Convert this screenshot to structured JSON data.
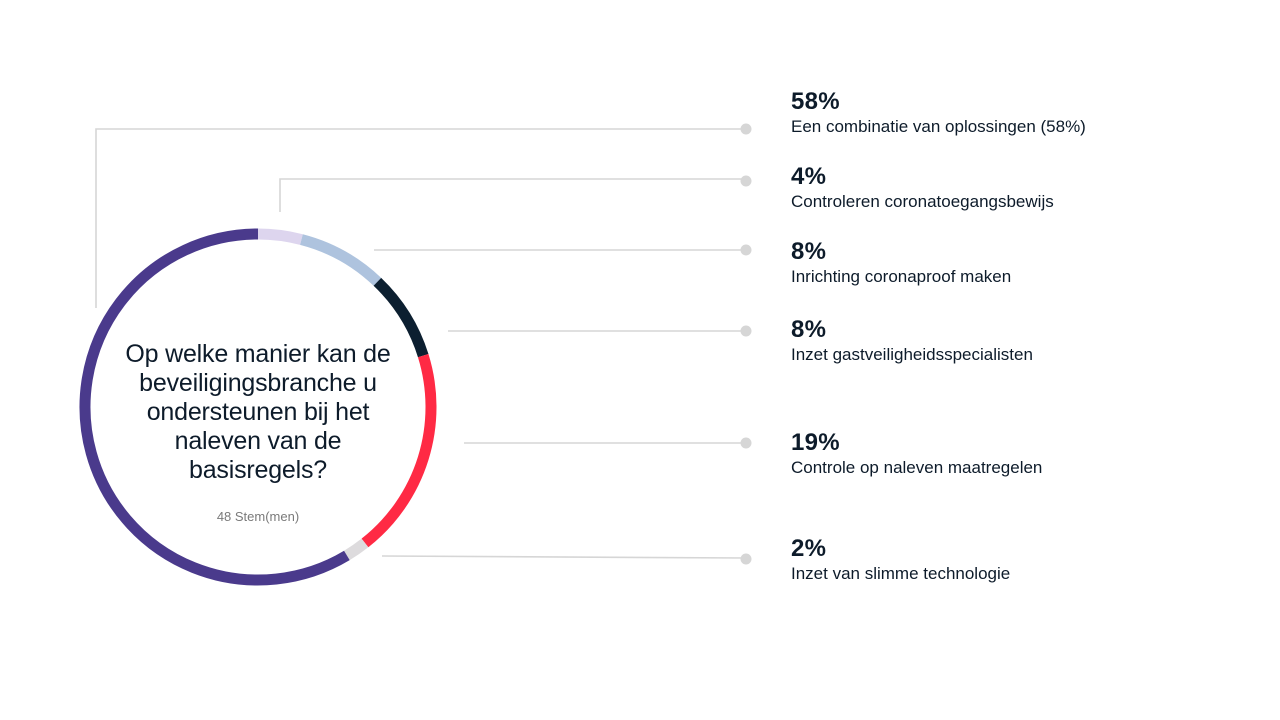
{
  "chart_data": {
    "type": "pie",
    "style": "donut",
    "question": "Op welke manier kan de beveiligingsbranche u ondersteunen bij het naleven van de basisregels?",
    "votes_label": "48 Stem(men)",
    "legend_placement": "right",
    "slices": [
      {
        "pct_label": "58%",
        "label": "Een combinatie van oplossingen (58%)",
        "value": 58,
        "color": "#4a3a8c"
      },
      {
        "pct_label": "4%",
        "label": "Controleren coronatoegangsbewijs",
        "value": 4,
        "color": "#ddd5ee"
      },
      {
        "pct_label": "8%",
        "label": "Inrichting coronaproof maken",
        "value": 8,
        "color": "#aec3de"
      },
      {
        "pct_label": "8%",
        "label": "Inzet gastveiligheidsspecialisten",
        "value": 8,
        "color": "#0c1f30"
      },
      {
        "pct_label": "19%",
        "label": "Controle op naleven maatregelen",
        "value": 19,
        "color": "#ff2a44"
      },
      {
        "pct_label": "2%",
        "label": "Inzet van slimme technologie",
        "value": 2,
        "color": "#dddbdd"
      }
    ],
    "ring_order": [
      1,
      2,
      3,
      4,
      5,
      0
    ]
  },
  "colors": {
    "leader_line": "#d6d6d6",
    "leader_dot": "#d6d6d6",
    "text": "#0d1b2a"
  }
}
